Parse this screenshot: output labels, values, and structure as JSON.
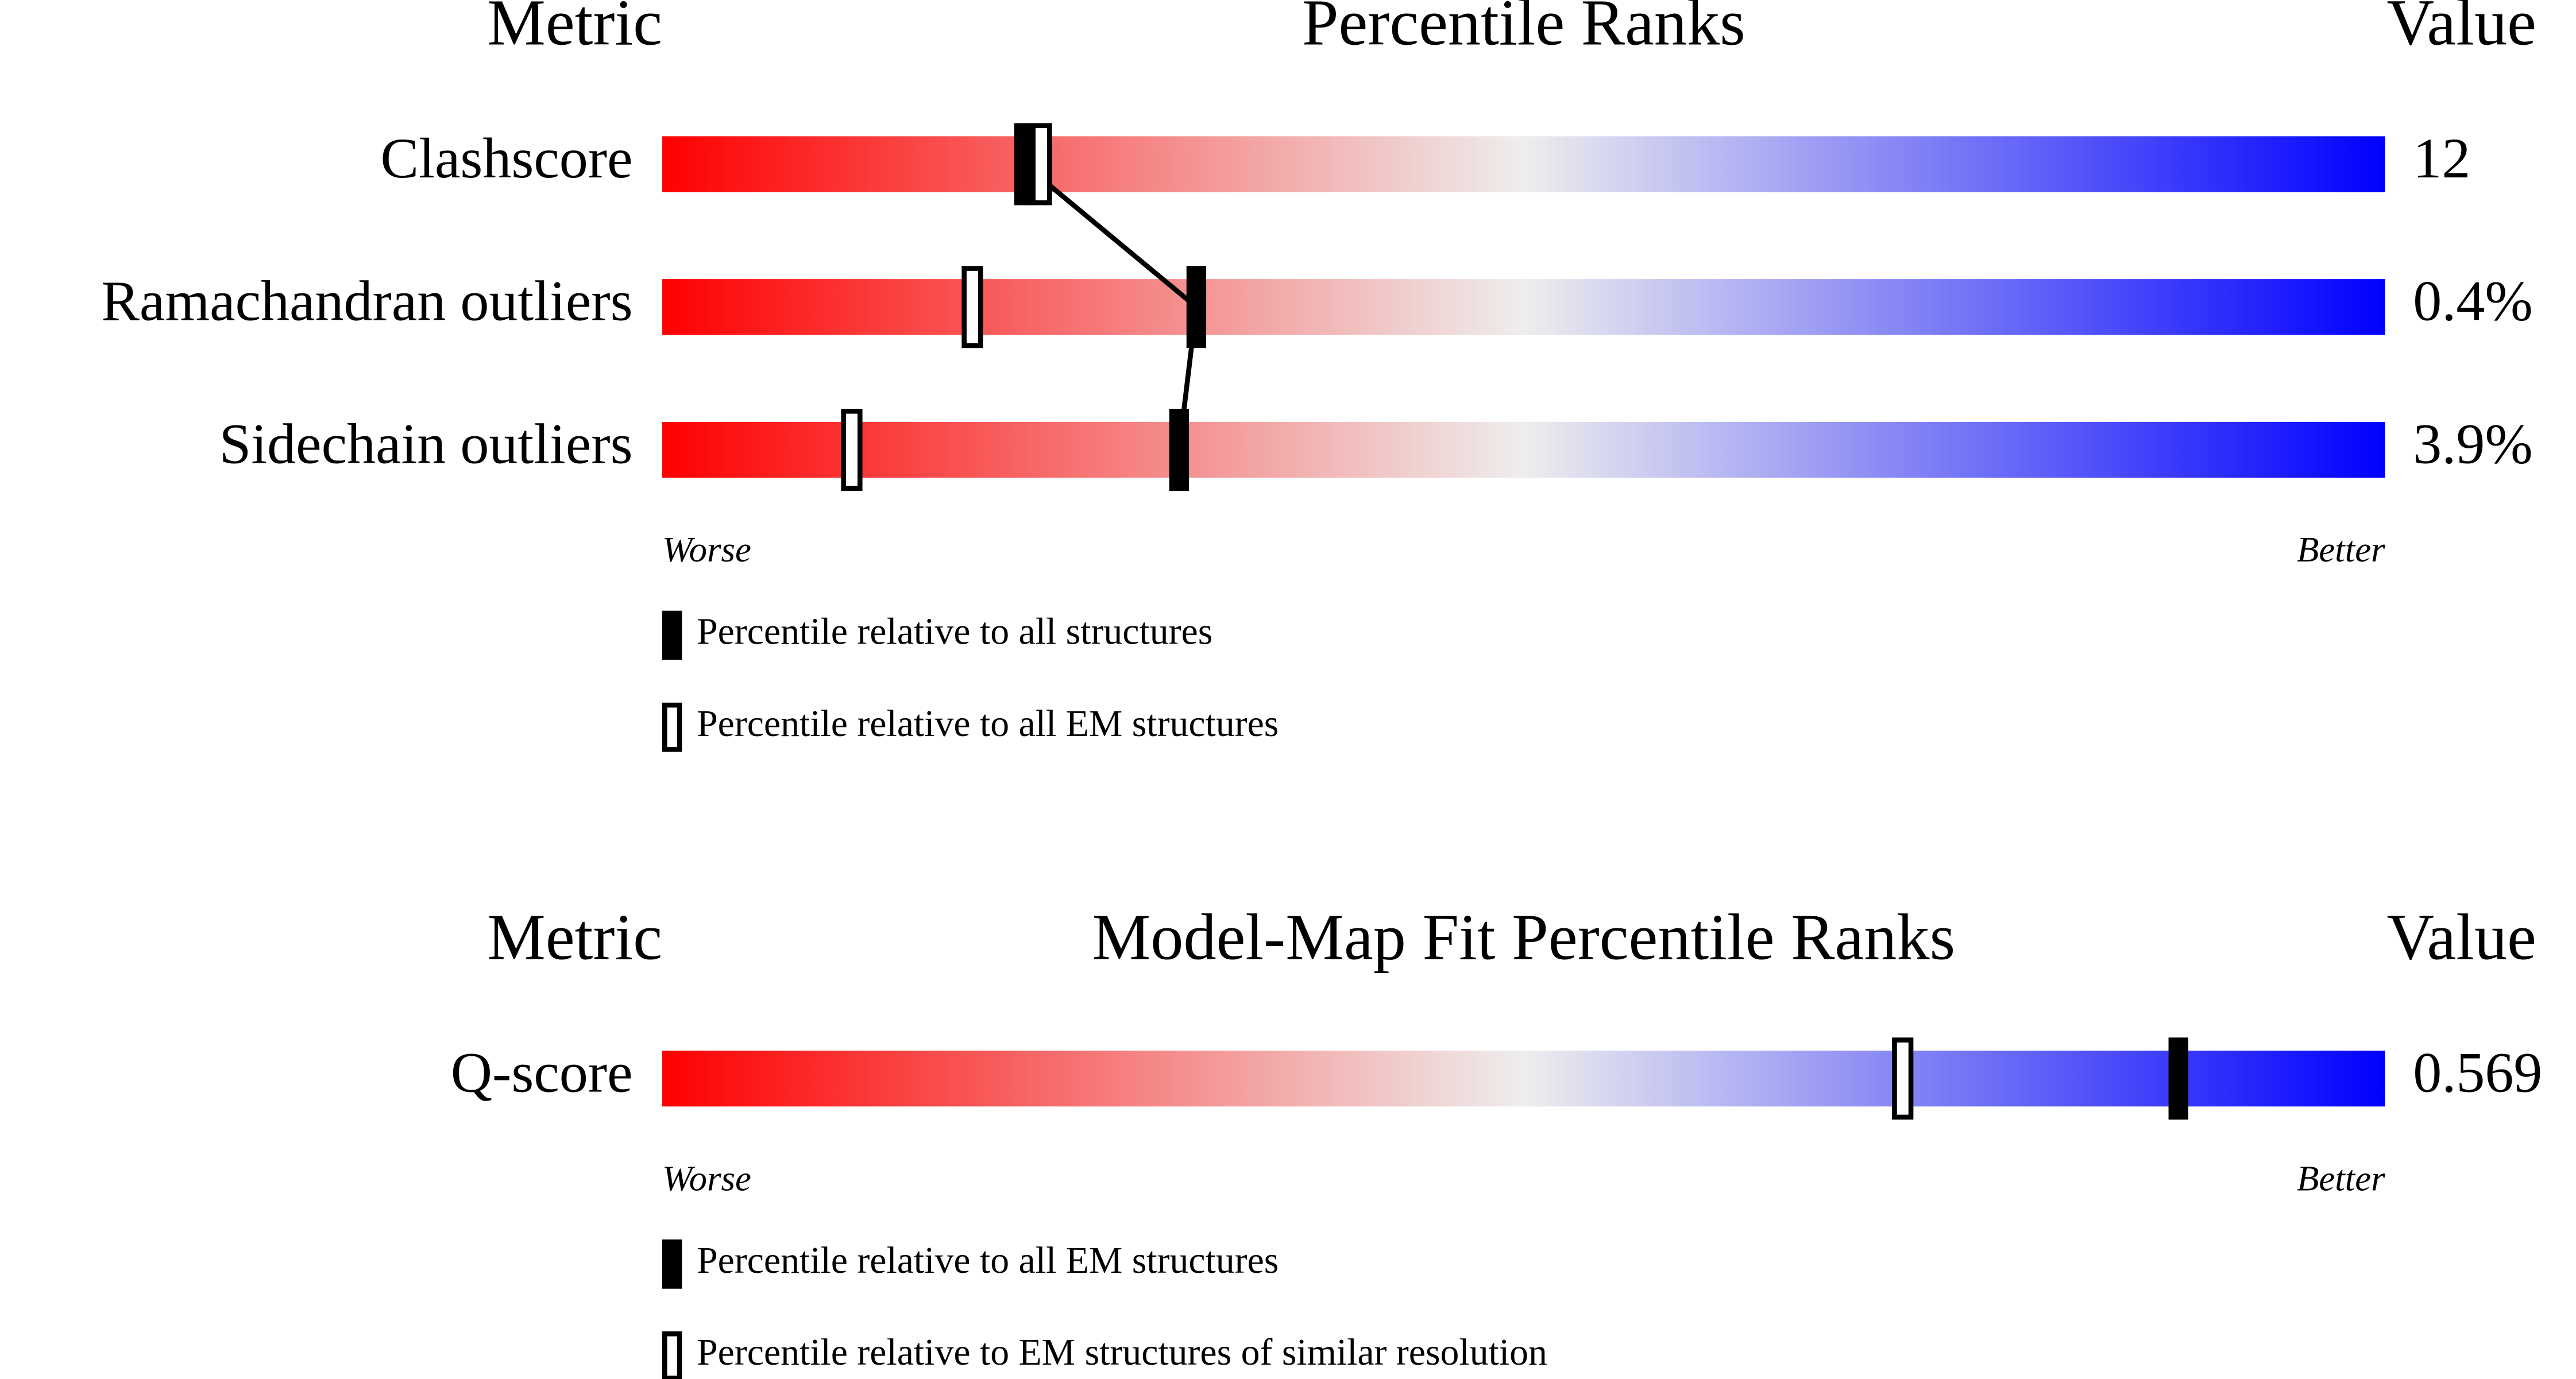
{
  "chart_data": [
    {
      "type": "percentile-slider",
      "title": "Percentile Ranks",
      "metric_header": "Metric",
      "value_header": "Value",
      "categories": [
        "Clashscore",
        "Ramachandran outliers",
        "Sidechain outliers"
      ],
      "value_texts": [
        "12",
        "0.4%",
        "3.9%"
      ],
      "xlim": [
        0,
        100
      ],
      "low_label": "Worse",
      "high_label": "Better",
      "gradient": [
        "#ff0000",
        "#eeeeee",
        "#0000ff"
      ],
      "series": [
        {
          "name": "Percentile relative to all structures",
          "style": "filled",
          "connect": true,
          "color": "#000000",
          "values": [
            21,
            31,
            30
          ]
        },
        {
          "name": "Percentile relative to all EM structures",
          "style": "open",
          "connect": false,
          "color": "#000000",
          "values": [
            22,
            18,
            11
          ]
        }
      ]
    },
    {
      "type": "percentile-slider",
      "title": "Model-Map Fit Percentile Ranks",
      "metric_header": "Metric",
      "value_header": "Value",
      "categories": [
        "Q-score"
      ],
      "value_texts": [
        "0.569"
      ],
      "xlim": [
        0,
        100
      ],
      "low_label": "Worse",
      "high_label": "Better",
      "gradient": [
        "#ff0000",
        "#eeeeee",
        "#0000ff"
      ],
      "series": [
        {
          "name": "Percentile relative to all EM structures",
          "style": "filled",
          "connect": true,
          "color": "#000000",
          "values": [
            88
          ]
        },
        {
          "name": "Percentile relative to EM structures of similar resolution",
          "style": "open",
          "connect": false,
          "color": "#000000",
          "values": [
            72
          ]
        }
      ]
    }
  ]
}
